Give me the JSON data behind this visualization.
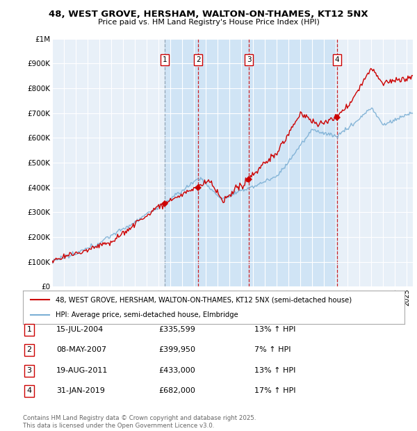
{
  "title": "48, WEST GROVE, HERSHAM, WALTON-ON-THAMES, KT12 5NX",
  "subtitle": "Price paid vs. HM Land Registry's House Price Index (HPI)",
  "hpi_color": "#7bafd4",
  "hpi_fill_color": "#cfe0f0",
  "price_color": "#cc0000",
  "plot_bg": "#e8f0f8",
  "ylim": [
    0,
    1000000
  ],
  "yticks": [
    0,
    100000,
    200000,
    300000,
    400000,
    500000,
    600000,
    700000,
    800000,
    900000,
    1000000
  ],
  "ytick_labels": [
    "£0",
    "£100K",
    "£200K",
    "£300K",
    "£400K",
    "£500K",
    "£600K",
    "£700K",
    "£800K",
    "£900K",
    "£1M"
  ],
  "sale_dates": [
    2004.54,
    2007.36,
    2011.63,
    2019.08
  ],
  "sale_prices": [
    335599,
    399950,
    433000,
    682000
  ],
  "sale_labels": [
    "1",
    "2",
    "3",
    "4"
  ],
  "legend_price_label": "48, WEST GROVE, HERSHAM, WALTON-ON-THAMES, KT12 5NX (semi-detached house)",
  "legend_hpi_label": "HPI: Average price, semi-detached house, Elmbridge",
  "table_data": [
    [
      "1",
      "15-JUL-2004",
      "£335,599",
      "13% ↑ HPI"
    ],
    [
      "2",
      "08-MAY-2007",
      "£399,950",
      "7% ↑ HPI"
    ],
    [
      "3",
      "19-AUG-2011",
      "£433,000",
      "13% ↑ HPI"
    ],
    [
      "4",
      "31-JAN-2019",
      "£682,000",
      "17% ↑ HPI"
    ]
  ],
  "footer": "Contains HM Land Registry data © Crown copyright and database right 2025.\nThis data is licensed under the Open Government Licence v3.0.",
  "xmin": 1995,
  "xmax": 2025.5
}
